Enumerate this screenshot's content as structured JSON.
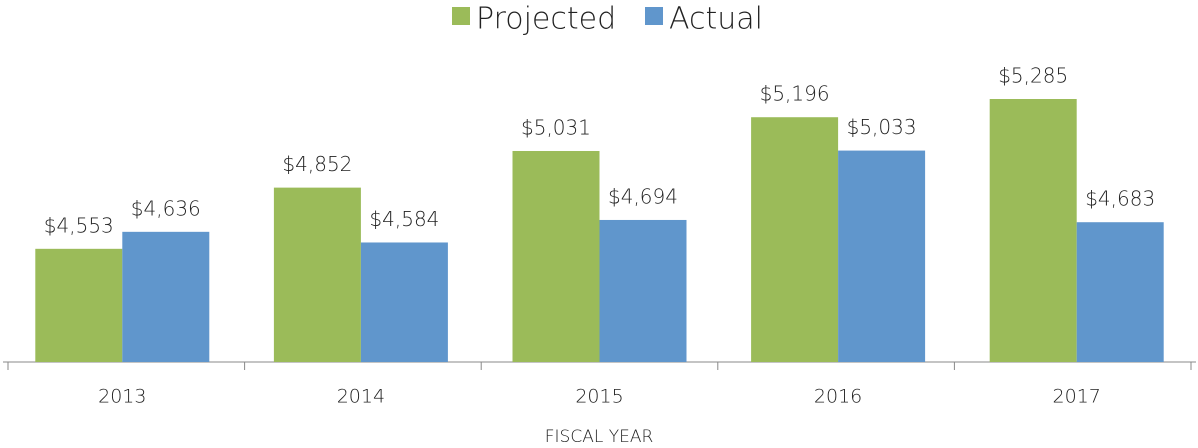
{
  "chart_data": {
    "type": "bar",
    "categories": [
      "2013",
      "2014",
      "2015",
      "2016",
      "2017"
    ],
    "series": [
      {
        "name": "Projected",
        "color": "#9bbb59",
        "values": [
          4553,
          4852,
          5031,
          5196,
          5285
        ],
        "value_labels": [
          "$4,553",
          "$4,852",
          "$5,031",
          "$5,196",
          "$5,285"
        ]
      },
      {
        "name": "Actual",
        "color": "#6096cc",
        "values": [
          4636,
          4584,
          4694,
          5033,
          4683
        ],
        "value_labels": [
          "$4,636",
          "$4,584",
          "$4,694",
          "$5,033",
          "$4,683"
        ]
      }
    ],
    "xlabel": "FISCAL YEAR",
    "ylim": [
      4000,
      5500
    ],
    "legend": "top"
  }
}
